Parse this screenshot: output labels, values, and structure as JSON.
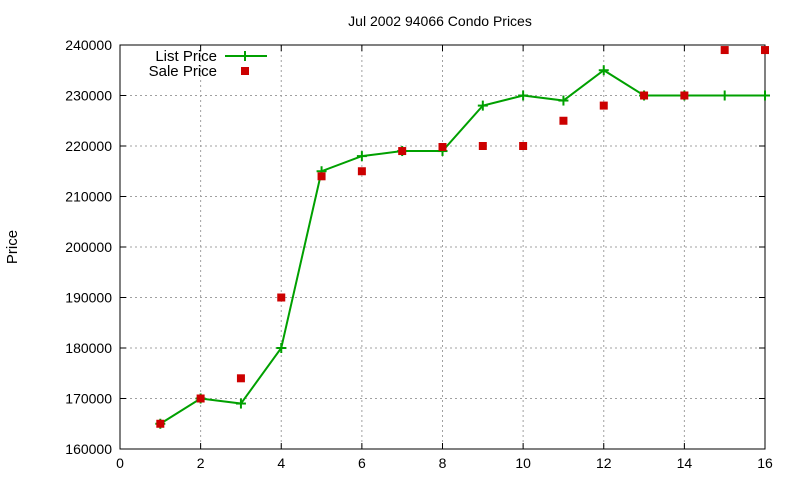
{
  "chart_data": {
    "type": "line",
    "title": "Jul 2002 94066 Condo Prices",
    "xlabel": "",
    "ylabel": "Price",
    "xlim": [
      0,
      16
    ],
    "ylim": [
      160000,
      240000
    ],
    "xticks": [
      0,
      2,
      4,
      6,
      8,
      10,
      12,
      14,
      16
    ],
    "yticks": [
      160000,
      170000,
      180000,
      190000,
      200000,
      210000,
      220000,
      230000,
      240000
    ],
    "grid": true,
    "legend_position": "top-left",
    "series": [
      {
        "name": "List Price",
        "style": "line-with-plus-markers",
        "color": "#00a000",
        "x": [
          1,
          2,
          3,
          4,
          5,
          6,
          7,
          8,
          9,
          10,
          11,
          12,
          13,
          14,
          15,
          16
        ],
        "y": [
          165000,
          170000,
          169000,
          180000,
          215000,
          218000,
          219000,
          219000,
          228000,
          230000,
          229000,
          235000,
          230000,
          230000,
          230000,
          230000
        ]
      },
      {
        "name": "Sale Price",
        "style": "square-markers",
        "color": "#cc0000",
        "x": [
          1,
          2,
          3,
          4,
          5,
          6,
          7,
          8,
          9,
          10,
          11,
          12,
          13,
          14,
          15,
          16
        ],
        "y": [
          165000,
          170000,
          174000,
          190000,
          214000,
          215000,
          219000,
          219800,
          220000,
          220000,
          225000,
          228000,
          230000,
          230000,
          239000,
          239000
        ]
      }
    ]
  }
}
